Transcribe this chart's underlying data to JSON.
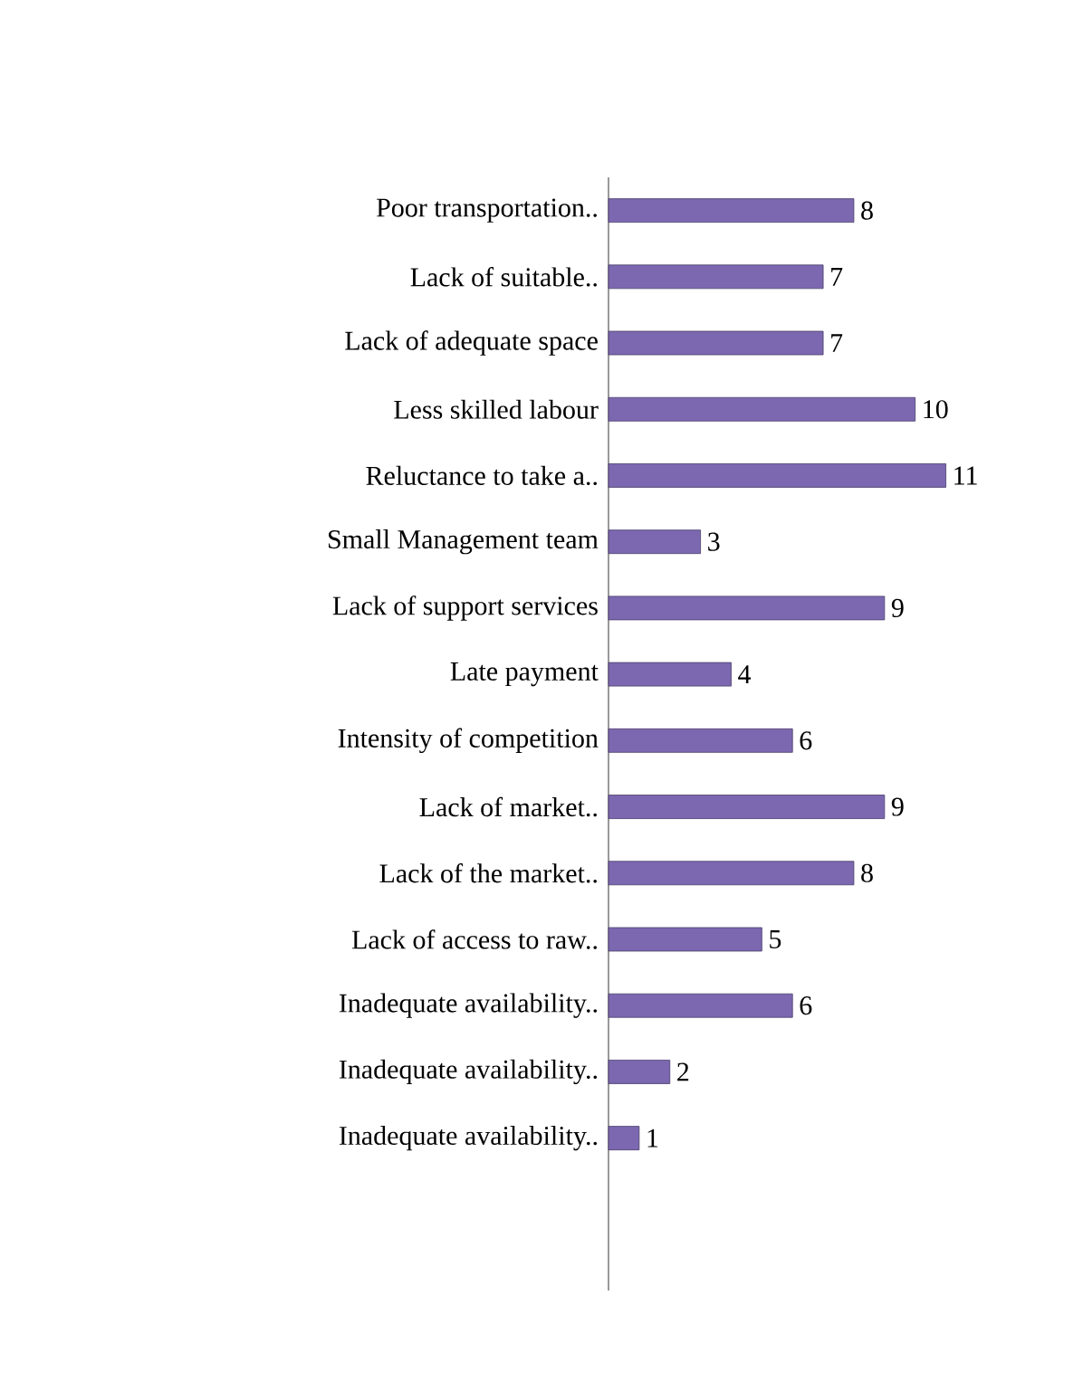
{
  "chart_data": {
    "type": "bar",
    "orientation": "horizontal",
    "data_labels": true,
    "color": "#7b68b0",
    "categories": [
      "Poor transportation..",
      "Lack of suitable..",
      "Lack of adequate space",
      "Less skilled labour",
      "Reluctance to take a..",
      "Small Management team",
      "Lack of support services",
      "Late payment",
      "Intensity of competition",
      "Lack of market..",
      "Lack of the market..",
      "Lack of access to raw..",
      "Inadequate availability..",
      "Inadequate availability..",
      "Inadequate availability.."
    ],
    "values": [
      8,
      7,
      7,
      10,
      11,
      3,
      9,
      4,
      6,
      9,
      8,
      5,
      6,
      2,
      1
    ]
  }
}
